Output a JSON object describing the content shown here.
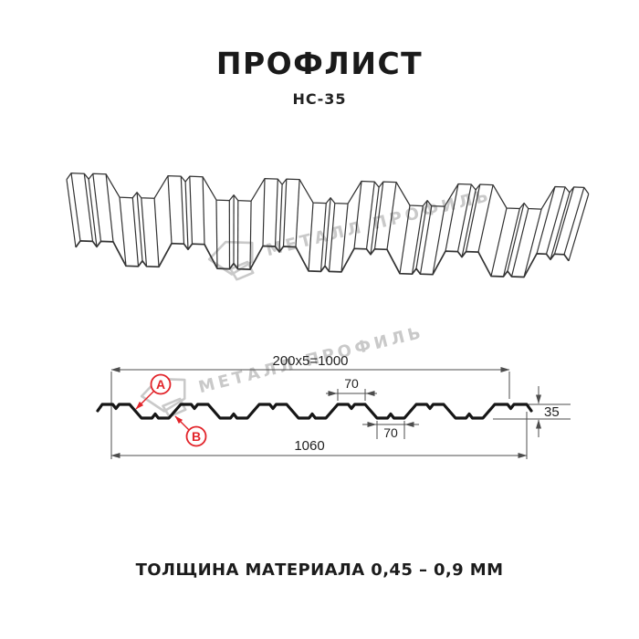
{
  "header": {
    "title": "ПРОФЛИСТ",
    "subtitle": "НС-35"
  },
  "watermark": {
    "brand": "МЕТАЛЛ ПРОФИЛЬ"
  },
  "drawing": {
    "dims": {
      "top_total": "200x5=1000",
      "flange_top": "70",
      "flange_bottom": "70",
      "height": "35",
      "overall_width": "1060"
    },
    "labels": {
      "a": "A",
      "b": "B"
    },
    "colors": {
      "accent": "#e2242a",
      "line": "#4d4d4d",
      "profile": "#161616",
      "watermark": "#c9c9c9",
      "ink": "#1a1a1a"
    }
  },
  "footer": {
    "caption": "ТОЛЩИНА МАТЕРИАЛА 0,45 – 0,9 ММ"
  }
}
